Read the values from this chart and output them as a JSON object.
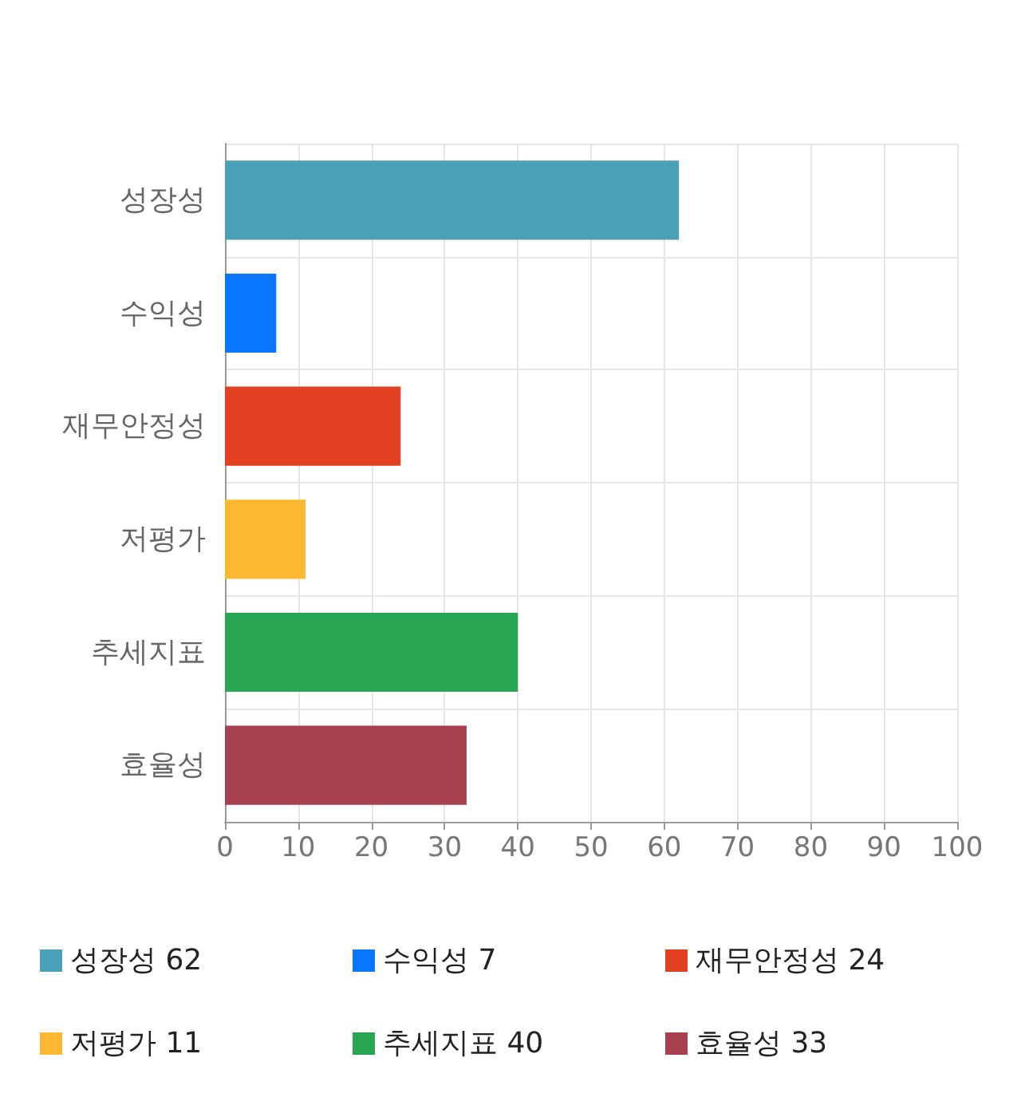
{
  "chart_data": {
    "type": "bar",
    "orientation": "horizontal",
    "stacked": true,
    "categories": [
      "성장성",
      "수익성",
      "재무안정성",
      "저평가",
      "추세지표",
      "효율성"
    ],
    "series": [
      {
        "name": "성장성 62",
        "color": "#4aa0b9",
        "values": [
          62,
          null,
          null,
          null,
          null,
          null
        ]
      },
      {
        "name": "수익성 7",
        "color": "#0a75fd",
        "values": [
          null,
          7,
          null,
          null,
          null,
          null
        ]
      },
      {
        "name": "재무안정성 24",
        "color": "#e24221",
        "values": [
          null,
          null,
          24,
          null,
          null,
          null
        ]
      },
      {
        "name": "저평가 11",
        "color": "#fdb832",
        "values": [
          null,
          null,
          null,
          11,
          null,
          null
        ]
      },
      {
        "name": "추세지표 40",
        "color": "#28a553",
        "values": [
          null,
          null,
          null,
          null,
          40,
          null
        ]
      },
      {
        "name": "효율성 33",
        "color": "#a8404f",
        "values": [
          null,
          null,
          null,
          null,
          null,
          33
        ]
      }
    ],
    "xlim": [
      0,
      100
    ],
    "xticks": [
      0,
      10,
      20,
      30,
      40,
      50,
      60,
      70,
      80,
      90,
      100
    ],
    "grid": true,
    "legend": "bottom"
  }
}
